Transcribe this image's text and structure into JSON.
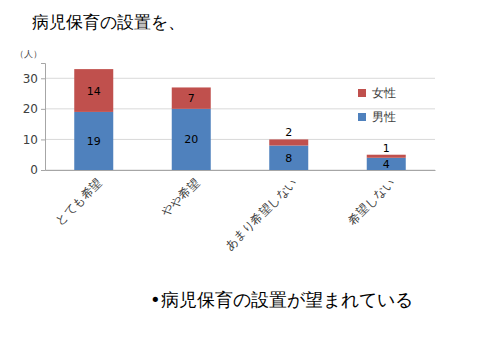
{
  "chart_data": {
    "type": "bar",
    "stacked": true,
    "title": "病児保育の設置を、",
    "y_label": "（人）",
    "annotation": "•病児保育の設置が望まれている",
    "categories": [
      "とても希望",
      "やや希望",
      "あまり希望しない",
      "希望しない"
    ],
    "series": [
      {
        "name": "男性",
        "color": "#4f81bd",
        "values": [
          19,
          20,
          8,
          4
        ]
      },
      {
        "name": "女性",
        "color": "#c0504d",
        "values": [
          14,
          7,
          2,
          1
        ]
      }
    ],
    "ylim": [
      0,
      35
    ],
    "yticks": [
      0,
      10,
      20,
      30
    ],
    "grid": true,
    "data_labels": true,
    "legend": "right"
  }
}
